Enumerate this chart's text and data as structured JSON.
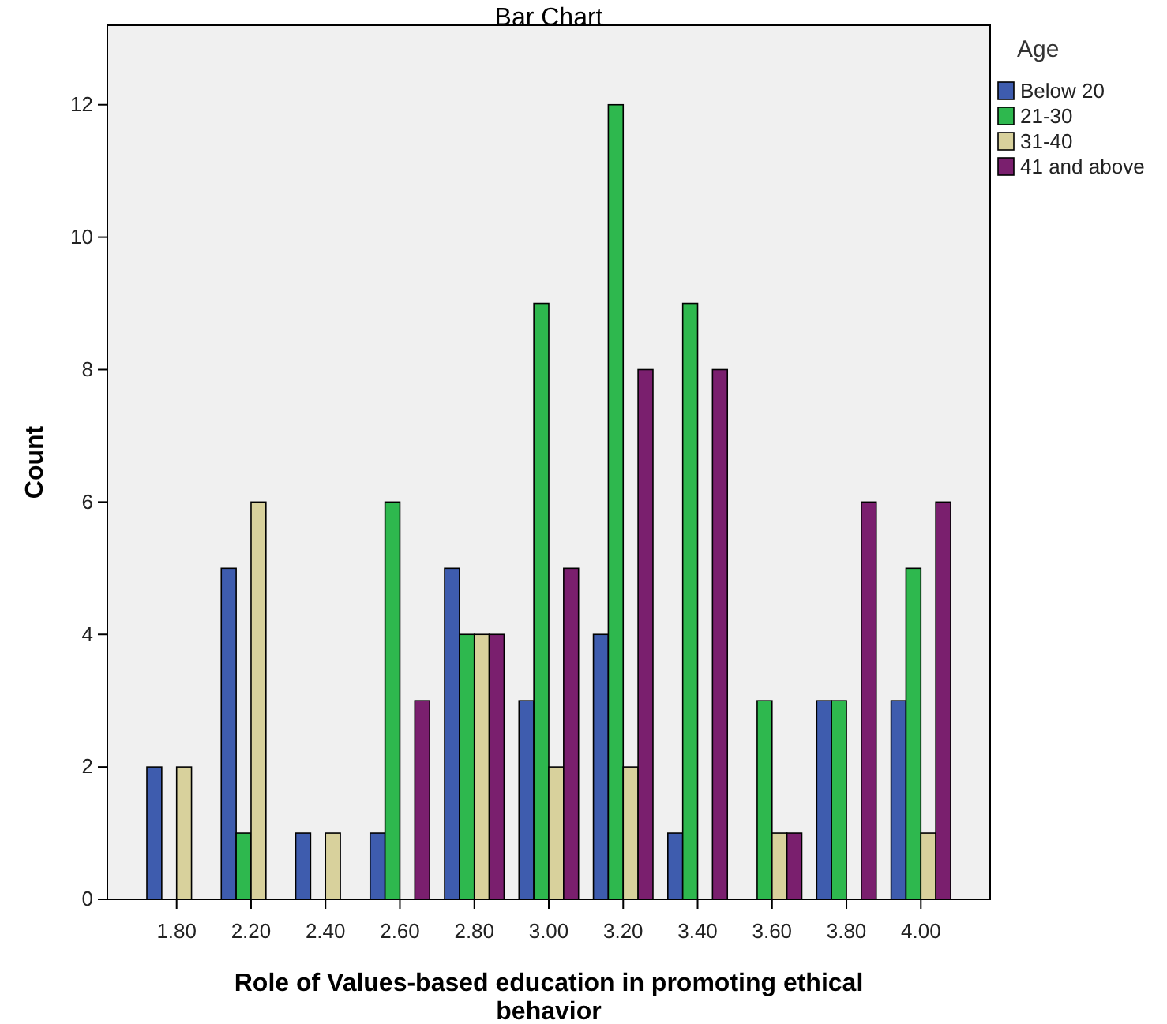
{
  "chart_data": {
    "type": "bar",
    "title": "Bar Chart",
    "xlabel": "Role of Values-based education in promoting ethical behavior",
    "ylabel": "Count",
    "legend_title": "Age",
    "legend": "right",
    "categories": [
      "1.80",
      "2.20",
      "2.40",
      "2.60",
      "2.80",
      "3.00",
      "3.20",
      "3.40",
      "3.60",
      "3.80",
      "4.00"
    ],
    "series": [
      {
        "name": "Below 20",
        "color": "#3e5cae",
        "values": [
          2,
          5,
          1,
          1,
          5,
          3,
          4,
          1,
          null,
          3,
          3
        ]
      },
      {
        "name": "21-30",
        "color": "#2eb84e",
        "values": [
          null,
          1,
          null,
          6,
          4,
          9,
          12,
          9,
          3,
          3,
          5
        ]
      },
      {
        "name": "31-40",
        "color": "#d8d19c",
        "values": [
          2,
          6,
          1,
          null,
          4,
          2,
          2,
          null,
          1,
          null,
          1
        ]
      },
      {
        "name": "41 and above",
        "color": "#7a1f6e",
        "values": [
          null,
          null,
          null,
          3,
          4,
          5,
          8,
          8,
          1,
          6,
          6
        ]
      }
    ],
    "ylim": [
      0,
      13.2
    ],
    "yticks": [
      0,
      2,
      4,
      6,
      8,
      10,
      12
    ],
    "grid": false
  }
}
